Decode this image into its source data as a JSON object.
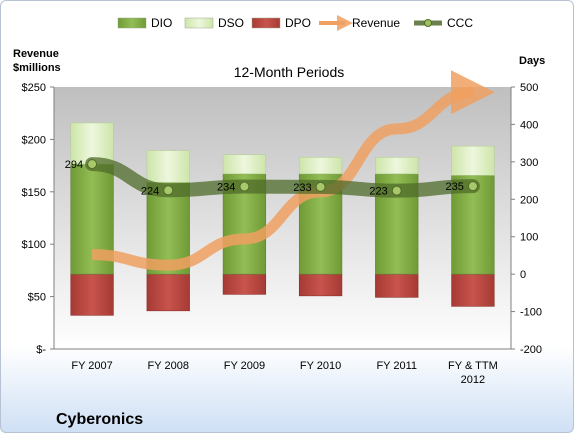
{
  "chart_data": {
    "type": "bar",
    "title": "12-Month Periods",
    "company": "Cyberonics",
    "categories": [
      [
        "FY 2007"
      ],
      [
        "FY 2008"
      ],
      [
        "FY 2009"
      ],
      [
        "FY 2010"
      ],
      [
        "FY 2011"
      ],
      [
        "FY & TTM",
        "2012"
      ]
    ],
    "left_axis": {
      "title": [
        "Revenue",
        "$millions"
      ],
      "ylim": [
        0,
        250
      ],
      "ticks": [
        {
          "value": 0,
          "label": "$-"
        },
        {
          "value": 50,
          "label": "$50"
        },
        {
          "value": 100,
          "label": "$100"
        },
        {
          "value": 150,
          "label": "$150"
        },
        {
          "value": 200,
          "label": "$200"
        },
        {
          "value": 250,
          "label": "$250"
        }
      ]
    },
    "right_axis": {
      "title": "Days",
      "ylim": [
        -200,
        500
      ],
      "ticks": [
        -200,
        -100,
        0,
        100,
        200,
        300,
        400,
        500
      ]
    },
    "series": [
      {
        "name": "DIO",
        "axis": "days",
        "values": [
          294,
          245,
          268,
          268,
          268,
          264
        ],
        "color": "#77a33b"
      },
      {
        "name": "DSO",
        "axis": "days",
        "values": [
          110,
          85,
          51,
          44,
          44,
          78
        ],
        "color": "#d8ecb8"
      },
      {
        "name": "DPO",
        "axis": "days",
        "values": [
          -110,
          -98,
          -54,
          -58,
          -62,
          -86
        ],
        "color": "#b7443e"
      },
      {
        "name": "Revenue",
        "axis": "money",
        "values": [
          90,
          80,
          105,
          150,
          210,
          245
        ],
        "color": "#f0a060"
      },
      {
        "name": "CCC",
        "axis": "days",
        "values": [
          294,
          224,
          234,
          233,
          223,
          235
        ],
        "color": "#4f6b2a"
      }
    ],
    "grid": false,
    "legend": "top"
  }
}
